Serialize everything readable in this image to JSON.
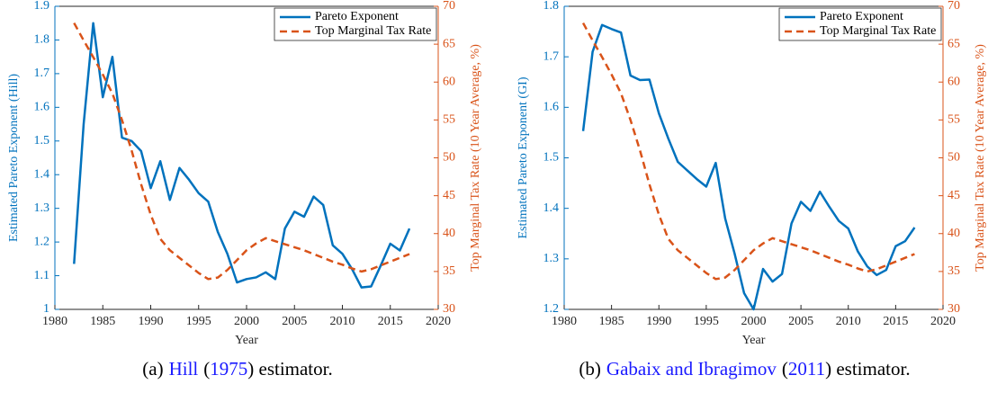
{
  "chart_data": [
    {
      "type": "line",
      "ylabel": "Estimated Pareto Exponent (Hill)",
      "y2label": "Top Marginal Tax Rate (10 Year Average, %)",
      "xlabel": "Year",
      "caption": [
        "(a)",
        "Hill",
        "(",
        "1975",
        ") estimator."
      ],
      "x": [
        1982,
        1983,
        1984,
        1985,
        1986,
        1987,
        1988,
        1989,
        1990,
        1991,
        1992,
        1993,
        1994,
        1995,
        1996,
        1997,
        1998,
        1999,
        2000,
        2001,
        2002,
        2003,
        2004,
        2005,
        2006,
        2007,
        2008,
        2009,
        2010,
        2011,
        2012,
        2013,
        2014,
        2015,
        2016,
        2017
      ],
      "series": [
        {
          "name": "Pareto Exponent",
          "color": "#0072bd",
          "dash": false,
          "values": [
            1.135,
            1.55,
            1.85,
            1.63,
            1.75,
            1.51,
            1.5,
            1.47,
            1.36,
            1.44,
            1.325,
            1.42,
            1.385,
            1.345,
            1.32,
            1.23,
            1.165,
            1.08,
            1.09,
            1.095,
            1.11,
            1.09,
            1.24,
            1.29,
            1.275,
            1.335,
            1.31,
            1.19,
            1.165,
            1.12,
            1.065,
            1.068,
            1.13,
            1.195,
            1.175,
            1.24
          ]
        },
        {
          "name": "Top Marginal Tax Rate",
          "color": "#d95319",
          "dash": true,
          "axis": "y2",
          "values": [
            67.8,
            65.5,
            63.3,
            61,
            58.5,
            55,
            51,
            46.5,
            42.5,
            39.3,
            37.8,
            36.8,
            35.8,
            34.8,
            34,
            34.2,
            35.2,
            36.5,
            37.8,
            38.7,
            39.4,
            39,
            38.6,
            38.2,
            37.8,
            37.3,
            36.8,
            36.3,
            35.9,
            35.4,
            35,
            35.3,
            35.8,
            36.3,
            36.8,
            37.3
          ]
        }
      ],
      "xlim": [
        1980,
        2020
      ],
      "xticks": [
        1980,
        1985,
        1990,
        1995,
        2000,
        2005,
        2010,
        2015,
        2020
      ],
      "ylim": [
        1,
        1.9
      ],
      "yticks": [
        1,
        1.1,
        1.2,
        1.3,
        1.4,
        1.5,
        1.6,
        1.7,
        1.8,
        1.9
      ],
      "y2lim": [
        30,
        70
      ],
      "y2ticks": [
        30,
        35,
        40,
        45,
        50,
        55,
        60,
        65,
        70
      ],
      "legend": "top-right"
    },
    {
      "type": "line",
      "ylabel": "Estimated Pareto Exponent (GI)",
      "y2label": "Top Marginal Tax Rate (10 Year Average, %)",
      "xlabel": "Year",
      "caption": [
        "(b)",
        "Gabaix and Ibragimov",
        "(",
        "2011",
        ") estimator."
      ],
      "x": [
        1982,
        1983,
        1984,
        1985,
        1986,
        1987,
        1988,
        1989,
        1990,
        1991,
        1992,
        1993,
        1994,
        1995,
        1996,
        1997,
        1998,
        1999,
        2000,
        2001,
        2002,
        2003,
        2004,
        2005,
        2006,
        2007,
        2008,
        2009,
        2010,
        2011,
        2012,
        2013,
        2014,
        2015,
        2016,
        2017
      ],
      "series": [
        {
          "name": "Pareto Exponent",
          "color": "#0072bd",
          "dash": false,
          "values": [
            1.553,
            1.71,
            1.763,
            1.755,
            1.748,
            1.663,
            1.654,
            1.655,
            1.588,
            1.538,
            1.492,
            1.475,
            1.458,
            1.443,
            1.49,
            1.38,
            1.31,
            1.232,
            1.2,
            1.28,
            1.255,
            1.27,
            1.37,
            1.413,
            1.395,
            1.433,
            1.403,
            1.375,
            1.36,
            1.315,
            1.285,
            1.268,
            1.278,
            1.325,
            1.335,
            1.362
          ]
        },
        {
          "name": "Top Marginal Tax Rate",
          "color": "#d95319",
          "dash": true,
          "axis": "y2",
          "values": [
            67.8,
            65.5,
            63.3,
            61,
            58.5,
            55,
            51,
            46.5,
            42.5,
            39.3,
            37.8,
            36.8,
            35.8,
            34.8,
            34,
            34.2,
            35.2,
            36.5,
            37.8,
            38.7,
            39.4,
            39,
            38.6,
            38.2,
            37.8,
            37.3,
            36.8,
            36.3,
            35.9,
            35.4,
            35,
            35.3,
            35.8,
            36.3,
            36.8,
            37.3
          ]
        }
      ],
      "xlim": [
        1980,
        2020
      ],
      "xticks": [
        1980,
        1985,
        1990,
        1995,
        2000,
        2005,
        2010,
        2015,
        2020
      ],
      "ylim": [
        1.2,
        1.8
      ],
      "yticks": [
        1.2,
        1.3,
        1.4,
        1.5,
        1.6,
        1.7,
        1.8
      ],
      "y2lim": [
        30,
        70
      ],
      "y2ticks": [
        30,
        35,
        40,
        45,
        50,
        55,
        60,
        65,
        70
      ],
      "legend": "top-right"
    }
  ]
}
